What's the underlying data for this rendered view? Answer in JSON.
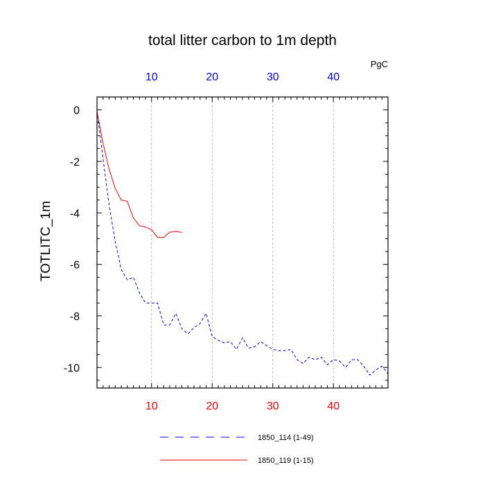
{
  "chart_data": {
    "type": "line",
    "title": "total litter carbon to 1m depth",
    "ylabel": "TOTLITC_1m",
    "units_label": "PgC",
    "xlim": [
      1,
      49
    ],
    "ylim": [
      -10.8,
      0.5
    ],
    "x_ticks": [
      10,
      20,
      30,
      40
    ],
    "y_ticks": [
      0,
      -2,
      -4,
      -6,
      -8,
      -10
    ],
    "x_tick_labels": [
      "10",
      "20",
      "30",
      "40"
    ],
    "y_tick_labels": [
      "0",
      "-2",
      "-4",
      "-6",
      "-8",
      "-10"
    ],
    "grid": "vertical dashed at major x ticks",
    "legend_position": "bottom",
    "colors": {
      "bottom_tick_labels": "#ff0000",
      "top_tick_labels": "#0000ff",
      "axis": "#000000",
      "grid": "#999999"
    },
    "series": [
      {
        "name": "1850_114 (1-49)",
        "color": "#0000ff",
        "style": "dashed",
        "x": [
          1,
          2,
          3,
          4,
          5,
          6,
          7,
          8,
          9,
          10,
          11,
          12,
          13,
          14,
          15,
          16,
          17,
          18,
          19,
          20,
          21,
          22,
          23,
          24,
          25,
          26,
          27,
          28,
          29,
          30,
          31,
          32,
          33,
          34,
          35,
          36,
          37,
          38,
          39,
          40,
          41,
          42,
          43,
          44,
          45,
          46,
          47,
          48,
          49
        ],
        "values": [
          -0.05,
          -1.9,
          -3.7,
          -5.1,
          -6.2,
          -6.6,
          -6.5,
          -7.1,
          -7.5,
          -7.5,
          -7.5,
          -8.35,
          -8.35,
          -7.9,
          -8.5,
          -8.7,
          -8.45,
          -8.3,
          -7.9,
          -8.8,
          -8.95,
          -9.05,
          -9.0,
          -9.3,
          -8.85,
          -9.25,
          -9.2,
          -9.0,
          -9.15,
          -9.3,
          -9.35,
          -9.35,
          -9.3,
          -9.7,
          -9.85,
          -9.6,
          -9.7,
          -9.6,
          -9.9,
          -9.7,
          -9.75,
          -10.0,
          -9.7,
          -9.7,
          -9.95,
          -10.3,
          -10.1,
          -9.95,
          -10.25
        ]
      },
      {
        "name": "1850_119 (1-15)",
        "color": "#ff0000",
        "style": "solid",
        "x": [
          1,
          2,
          3,
          4,
          5,
          6,
          7,
          8,
          9,
          10,
          11,
          12,
          13,
          14,
          15
        ],
        "values": [
          -0.05,
          -1.3,
          -2.3,
          -3.05,
          -3.5,
          -3.55,
          -4.2,
          -4.5,
          -4.55,
          -4.65,
          -4.95,
          -4.95,
          -4.75,
          -4.72,
          -4.76
        ]
      }
    ]
  }
}
